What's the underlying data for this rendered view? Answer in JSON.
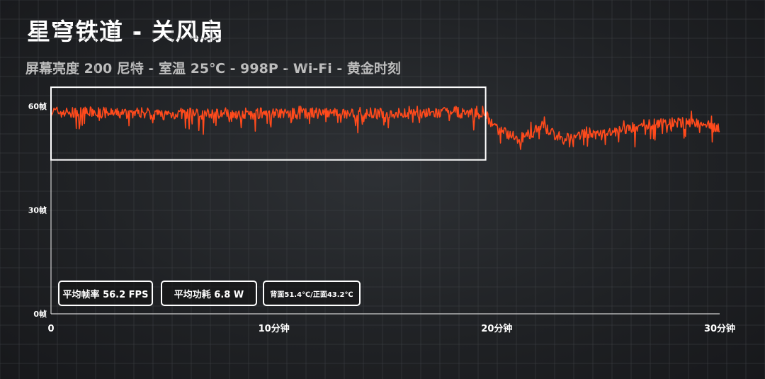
{
  "header": {
    "title": "星穹铁道 - 关风扇",
    "subtitle": "屏幕亮度 200 尼特 - 室温 25℃  - 998P - Wi-Fi - 黄金时刻"
  },
  "stats": {
    "avg_fps": "平均帧率  56.2 FPS",
    "avg_power": "平均功耗 6.8 W",
    "temps": "背面51.4℃/正面43.2℃"
  },
  "chart_data": {
    "type": "line",
    "xlim": [
      0,
      30
    ],
    "ylim": [
      0,
      60
    ],
    "xticks": [
      0,
      10,
      20,
      30
    ],
    "xtick_labels": [
      "0",
      "10分钟",
      "20分钟",
      "30分钟"
    ],
    "yticks": [
      0,
      30,
      60
    ],
    "ytick_labels": [
      "0帧",
      "30帧",
      "60帧"
    ],
    "grid": true,
    "series": [
      {
        "color": "#ff4a1c",
        "x": [
          0,
          1,
          2,
          3,
          4,
          5,
          6,
          7,
          8,
          9,
          10,
          11,
          12,
          13,
          14,
          15,
          16,
          17,
          18,
          19,
          19.5,
          20,
          20.5,
          21,
          21.5,
          22,
          22.5,
          23,
          23.5,
          24,
          24.5,
          25,
          25.5,
          26,
          26.5,
          27,
          27.5,
          28,
          28.5,
          29,
          29.5,
          30
        ],
        "values": [
          58.5,
          58,
          58.3,
          57.8,
          58.2,
          57.6,
          58,
          57.8,
          58.1,
          57.9,
          58.2,
          57.8,
          58,
          57.7,
          58.1,
          57.8,
          58,
          57.9,
          58.2,
          57.9,
          57.5,
          53.5,
          52,
          50.5,
          52,
          54.5,
          52,
          50.5,
          51.5,
          52.5,
          51.5,
          52,
          53,
          53.5,
          54.5,
          55,
          55.5,
          55,
          55.5,
          55,
          54.5,
          53.5
        ]
      }
    ],
    "highlight": {
      "x_range": [
        0,
        19.5
      ],
      "y_range": [
        44.5,
        65.5
      ]
    }
  },
  "colors": {
    "line": "#ff4a1c",
    "grid": "#3d4044",
    "tick_text": "#ffffff",
    "box_border": "#ffffff"
  }
}
